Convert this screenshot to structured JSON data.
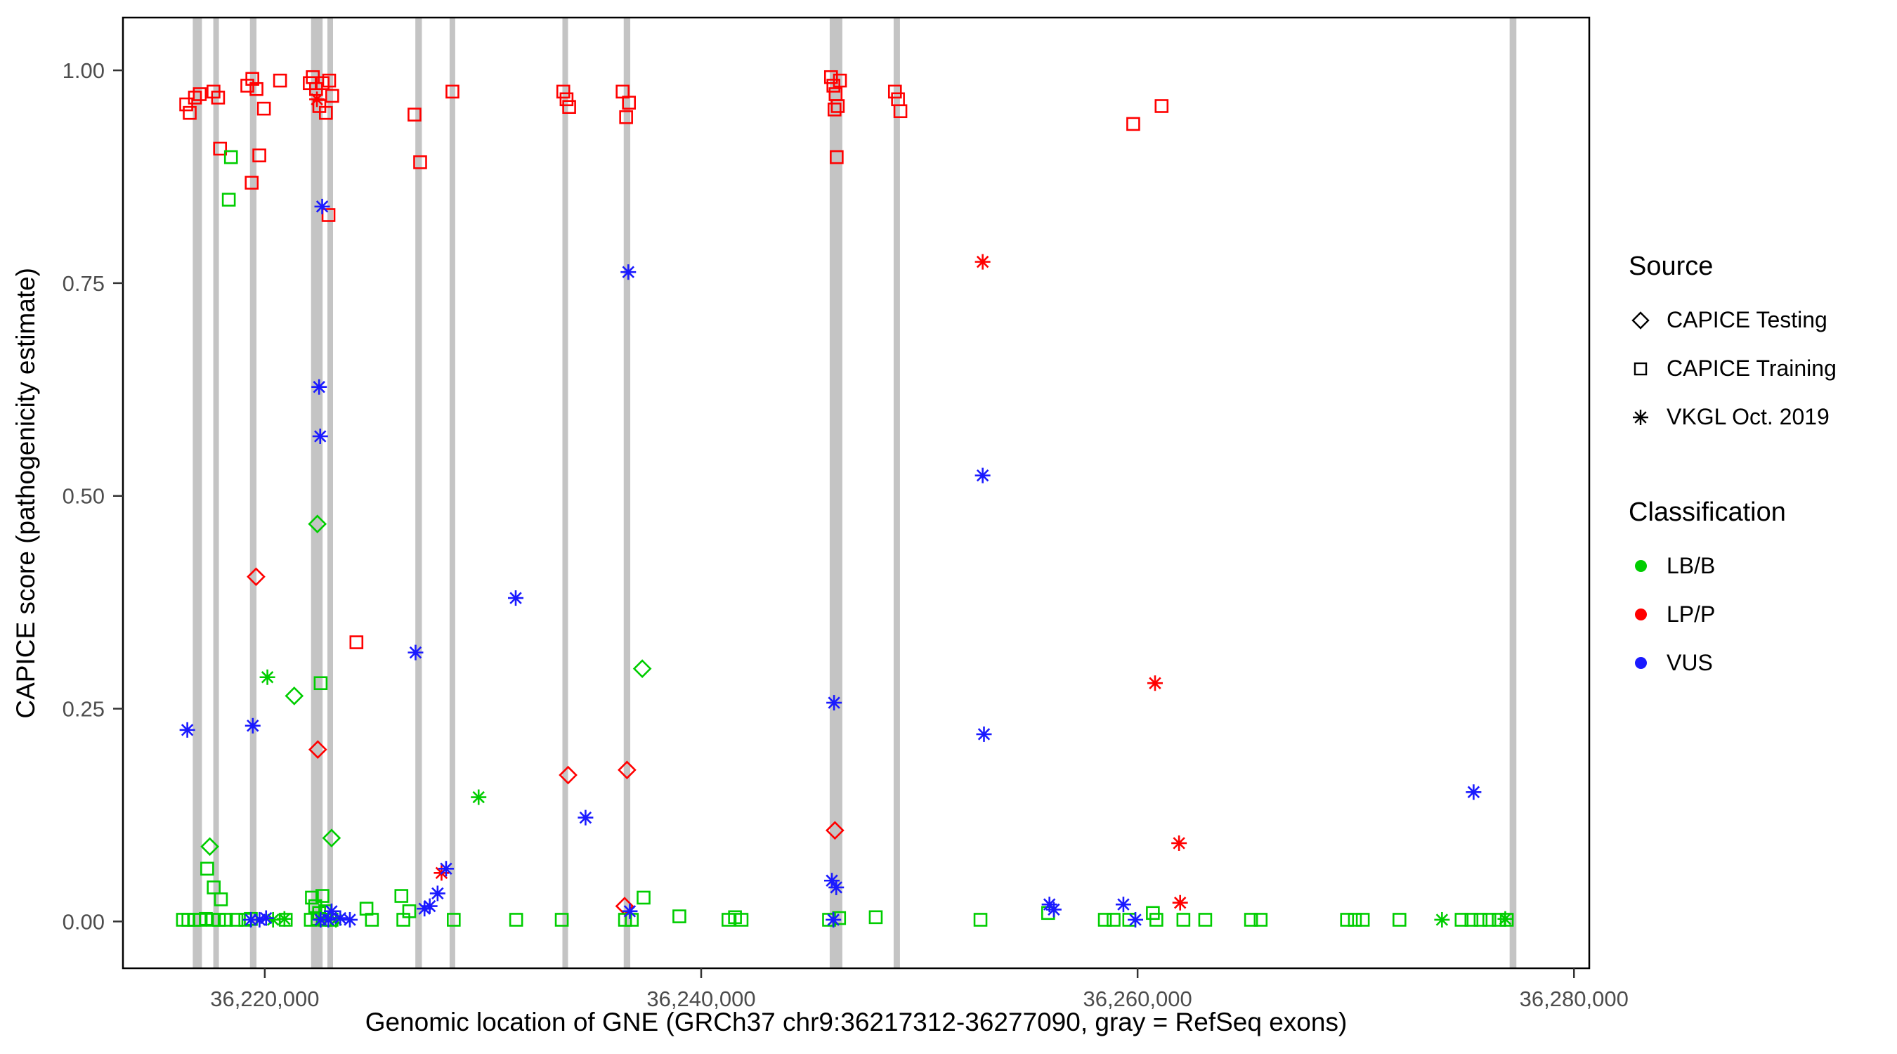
{
  "legend": {
    "source": {
      "title": "Source",
      "items": [
        {
          "label": "CAPICE Testing",
          "shape": "diamond"
        },
        {
          "label": "CAPICE Training",
          "shape": "square"
        },
        {
          "label": "VKGL Oct. 2019",
          "shape": "asterisk"
        }
      ]
    },
    "classification": {
      "title": "Classification",
      "items": [
        {
          "label": "LB/B",
          "color": "#00CD00"
        },
        {
          "label": "LP/P",
          "color": "#FF0000"
        },
        {
          "label": "VUS",
          "color": "#1A1AFF"
        }
      ]
    }
  },
  "chart_data": {
    "type": "scatter",
    "title": "",
    "xlabel": "Genomic location of GNE (GRCh37 chr9:36217312-36277090, gray = RefSeq exons)",
    "ylabel": "CAPICE score (pathogenicity estimate)",
    "xlim": [
      36213500,
      36280700
    ],
    "ylim": [
      -0.055,
      1.062
    ],
    "grid": false,
    "legend_position": "right",
    "x_ticks": [
      {
        "value": 36220000,
        "label": "36,220,000"
      },
      {
        "value": 36240000,
        "label": "36,240,000"
      },
      {
        "value": 36260000,
        "label": "36,260,000"
      },
      {
        "value": 36280000,
        "label": "36,280,000"
      }
    ],
    "y_ticks": [
      {
        "value": 0.0,
        "label": "0.00"
      },
      {
        "value": 0.25,
        "label": "0.25"
      },
      {
        "value": 0.5,
        "label": "0.50"
      },
      {
        "value": 0.75,
        "label": "0.75"
      },
      {
        "value": 1.0,
        "label": "1.00"
      }
    ],
    "exon_color": "#C4C4C4",
    "classification_colors": {
      "LB/B": "#00CD00",
      "LP/P": "#FF0000",
      "VUS": "#1A1AFF"
    },
    "shape_by_source": {
      "testing": "diamond",
      "training": "square",
      "vkgl": "asterisk"
    },
    "exons": [
      [
        36216700,
        36217120
      ],
      [
        36217640,
        36217880
      ],
      [
        36219320,
        36219620
      ],
      [
        36222120,
        36222650
      ],
      [
        36222870,
        36223110
      ],
      [
        36226900,
        36227200
      ],
      [
        36228470,
        36228720
      ],
      [
        36233640,
        36233890
      ],
      [
        36236450,
        36236750
      ],
      [
        36245890,
        36246470
      ],
      [
        36248820,
        36249110
      ],
      [
        36277050,
        36277360
      ]
    ],
    "points": [
      [
        36216400,
        0.96,
        "LP/P",
        "training"
      ],
      [
        36216560,
        0.95,
        "LP/P",
        "training"
      ],
      [
        36216800,
        0.968,
        "LP/P",
        "training"
      ],
      [
        36217020,
        0.972,
        "LP/P",
        "training"
      ],
      [
        36217650,
        0.975,
        "LP/P",
        "training"
      ],
      [
        36217860,
        0.968,
        "LP/P",
        "training"
      ],
      [
        36217950,
        0.908,
        "LP/P",
        "training"
      ],
      [
        36219750,
        0.9,
        "LP/P",
        "training"
      ],
      [
        36219400,
        0.868,
        "LP/P",
        "training"
      ],
      [
        36219200,
        0.982,
        "LP/P",
        "training"
      ],
      [
        36219430,
        0.99,
        "LP/P",
        "training"
      ],
      [
        36219620,
        0.978,
        "LP/P",
        "training"
      ],
      [
        36219960,
        0.955,
        "LP/P",
        "training"
      ],
      [
        36220700,
        0.988,
        "LP/P",
        "training"
      ],
      [
        36222060,
        0.985,
        "LP/P",
        "training"
      ],
      [
        36222200,
        0.992,
        "LP/P",
        "training"
      ],
      [
        36222350,
        0.978,
        "LP/P",
        "training"
      ],
      [
        36222500,
        0.958,
        "LP/P",
        "training"
      ],
      [
        36222650,
        0.985,
        "LP/P",
        "training"
      ],
      [
        36222800,
        0.95,
        "LP/P",
        "training"
      ],
      [
        36222950,
        0.988,
        "LP/P",
        "training"
      ],
      [
        36223090,
        0.97,
        "LP/P",
        "training"
      ],
      [
        36222920,
        0.83,
        "LP/P",
        "training"
      ],
      [
        36224200,
        0.328,
        "LP/P",
        "training"
      ],
      [
        36226860,
        0.948,
        "LP/P",
        "training"
      ],
      [
        36227120,
        0.892,
        "LP/P",
        "training"
      ],
      [
        36228600,
        0.975,
        "LP/P",
        "training"
      ],
      [
        36233680,
        0.975,
        "LP/P",
        "training"
      ],
      [
        36233830,
        0.966,
        "LP/P",
        "training"
      ],
      [
        36233950,
        0.957,
        "LP/P",
        "training"
      ],
      [
        36236400,
        0.975,
        "LP/P",
        "training"
      ],
      [
        36236560,
        0.945,
        "LP/P",
        "training"
      ],
      [
        36236690,
        0.962,
        "LP/P",
        "training"
      ],
      [
        36245950,
        0.992,
        "LP/P",
        "training"
      ],
      [
        36246060,
        0.982,
        "LP/P",
        "training"
      ],
      [
        36246160,
        0.972,
        "LP/P",
        "training"
      ],
      [
        36246260,
        0.958,
        "LP/P",
        "training"
      ],
      [
        36246360,
        0.988,
        "LP/P",
        "training"
      ],
      [
        36246110,
        0.954,
        "LP/P",
        "training"
      ],
      [
        36246210,
        0.898,
        "LP/P",
        "training"
      ],
      [
        36248880,
        0.975,
        "LP/P",
        "training"
      ],
      [
        36249020,
        0.966,
        "LP/P",
        "training"
      ],
      [
        36249130,
        0.952,
        "LP/P",
        "training"
      ],
      [
        36259800,
        0.937,
        "LP/P",
        "training"
      ],
      [
        36261100,
        0.958,
        "LP/P",
        "training"
      ],
      [
        36219600,
        0.405,
        "LP/P",
        "testing"
      ],
      [
        36222430,
        0.202,
        "LP/P",
        "testing"
      ],
      [
        36233900,
        0.172,
        "LP/P",
        "testing"
      ],
      [
        36236600,
        0.178,
        "LP/P",
        "testing"
      ],
      [
        36246130,
        0.107,
        "LP/P",
        "testing"
      ],
      [
        36236490,
        0.018,
        "LP/P",
        "testing"
      ],
      [
        36222390,
        0.966,
        "LP/P",
        "vkgl"
      ],
      [
        36228100,
        0.057,
        "LP/P",
        "vkgl"
      ],
      [
        36252900,
        0.775,
        "LP/P",
        "vkgl"
      ],
      [
        36260800,
        0.28,
        "LP/P",
        "vkgl"
      ],
      [
        36261900,
        0.092,
        "LP/P",
        "vkgl"
      ],
      [
        36261950,
        0.022,
        "LP/P",
        "vkgl"
      ],
      [
        36217480,
        0.088,
        "LB/B",
        "testing"
      ],
      [
        36221350,
        0.265,
        "LB/B",
        "testing"
      ],
      [
        36222410,
        0.467,
        "LB/B",
        "testing"
      ],
      [
        36223060,
        0.098,
        "LB/B",
        "testing"
      ],
      [
        36237300,
        0.297,
        "LB/B",
        "testing"
      ],
      [
        36220120,
        0.287,
        "LB/B",
        "vkgl"
      ],
      [
        36229800,
        0.146,
        "LB/B",
        "vkgl"
      ],
      [
        36220380,
        0.002,
        "LB/B",
        "vkgl"
      ],
      [
        36220900,
        0.003,
        "LB/B",
        "vkgl"
      ],
      [
        36223260,
        0.002,
        "LB/B",
        "vkgl"
      ],
      [
        36273950,
        0.002,
        "LB/B",
        "vkgl"
      ],
      [
        36276850,
        0.003,
        "LB/B",
        "vkgl"
      ],
      [
        36218450,
        0.898,
        "LB/B",
        "training"
      ],
      [
        36218350,
        0.848,
        "LB/B",
        "training"
      ],
      [
        36217360,
        0.062,
        "LB/B",
        "training"
      ],
      [
        36217660,
        0.04,
        "LB/B",
        "training"
      ],
      [
        36217990,
        0.026,
        "LB/B",
        "training"
      ],
      [
        36222160,
        0.028,
        "LB/B",
        "training"
      ],
      [
        36222310,
        0.018,
        "LB/B",
        "training"
      ],
      [
        36222490,
        0.01,
        "LB/B",
        "training"
      ],
      [
        36222640,
        0.03,
        "LB/B",
        "training"
      ],
      [
        36222770,
        0.012,
        "LB/B",
        "training"
      ],
      [
        36222560,
        0.28,
        "LB/B",
        "training"
      ],
      [
        36224660,
        0.015,
        "LB/B",
        "training"
      ],
      [
        36226260,
        0.03,
        "LB/B",
        "training"
      ],
      [
        36226620,
        0.012,
        "LB/B",
        "training"
      ],
      [
        36237360,
        0.028,
        "LB/B",
        "training"
      ],
      [
        36239000,
        0.006,
        "LB/B",
        "training"
      ],
      [
        36255900,
        0.01,
        "LB/B",
        "training"
      ],
      [
        36216250,
        0.002,
        "LB/B",
        "training"
      ],
      [
        36216500,
        0.002,
        "LB/B",
        "training"
      ],
      [
        36216760,
        0.002,
        "LB/B",
        "training"
      ],
      [
        36217010,
        0.002,
        "LB/B",
        "training"
      ],
      [
        36217300,
        0.003,
        "LB/B",
        "training"
      ],
      [
        36217610,
        0.002,
        "LB/B",
        "training"
      ],
      [
        36217900,
        0.002,
        "LB/B",
        "training"
      ],
      [
        36218220,
        0.002,
        "LB/B",
        "training"
      ],
      [
        36218700,
        0.002,
        "LB/B",
        "training"
      ],
      [
        36219110,
        0.002,
        "LB/B",
        "training"
      ],
      [
        36219360,
        0.003,
        "LB/B",
        "training"
      ],
      [
        36220960,
        0.002,
        "LB/B",
        "training"
      ],
      [
        36222110,
        0.002,
        "LB/B",
        "training"
      ],
      [
        36222420,
        0.003,
        "LB/B",
        "training"
      ],
      [
        36222760,
        0.002,
        "LB/B",
        "training"
      ],
      [
        36223060,
        0.002,
        "LB/B",
        "training"
      ],
      [
        36224910,
        0.002,
        "LB/B",
        "training"
      ],
      [
        36226350,
        0.002,
        "LB/B",
        "training"
      ],
      [
        36228660,
        0.002,
        "LB/B",
        "training"
      ],
      [
        36231520,
        0.002,
        "LB/B",
        "training"
      ],
      [
        36233610,
        0.002,
        "LB/B",
        "training"
      ],
      [
        36236510,
        0.002,
        "LB/B",
        "training"
      ],
      [
        36236820,
        0.002,
        "LB/B",
        "training"
      ],
      [
        36241250,
        0.002,
        "LB/B",
        "training"
      ],
      [
        36241550,
        0.005,
        "LB/B",
        "training"
      ],
      [
        36241850,
        0.002,
        "LB/B",
        "training"
      ],
      [
        36245860,
        0.002,
        "LB/B",
        "training"
      ],
      [
        36246320,
        0.004,
        "LB/B",
        "training"
      ],
      [
        36248000,
        0.005,
        "LB/B",
        "training"
      ],
      [
        36252800,
        0.002,
        "LB/B",
        "training"
      ],
      [
        36258500,
        0.002,
        "LB/B",
        "training"
      ],
      [
        36258900,
        0.002,
        "LB/B",
        "training"
      ],
      [
        36259620,
        0.002,
        "LB/B",
        "training"
      ],
      [
        36260700,
        0.01,
        "LB/B",
        "training"
      ],
      [
        36260860,
        0.002,
        "LB/B",
        "training"
      ],
      [
        36262100,
        0.002,
        "LB/B",
        "training"
      ],
      [
        36263100,
        0.002,
        "LB/B",
        "training"
      ],
      [
        36265200,
        0.002,
        "LB/B",
        "training"
      ],
      [
        36265640,
        0.002,
        "LB/B",
        "training"
      ],
      [
        36269600,
        0.002,
        "LB/B",
        "training"
      ],
      [
        36269960,
        0.002,
        "LB/B",
        "training"
      ],
      [
        36270320,
        0.002,
        "LB/B",
        "training"
      ],
      [
        36272000,
        0.002,
        "LB/B",
        "training"
      ],
      [
        36274850,
        0.002,
        "LB/B",
        "training"
      ],
      [
        36275300,
        0.002,
        "LB/B",
        "training"
      ],
      [
        36275720,
        0.002,
        "LB/B",
        "training"
      ],
      [
        36276120,
        0.002,
        "LB/B",
        "training"
      ],
      [
        36276550,
        0.002,
        "LB/B",
        "training"
      ],
      [
        36276920,
        0.002,
        "LB/B",
        "training"
      ],
      [
        36216450,
        0.225,
        "VUS",
        "vkgl"
      ],
      [
        36219450,
        0.23,
        "VUS",
        "vkgl"
      ],
      [
        36222630,
        0.84,
        "VUS",
        "vkgl"
      ],
      [
        36222490,
        0.628,
        "VUS",
        "vkgl"
      ],
      [
        36222540,
        0.57,
        "VUS",
        "vkgl"
      ],
      [
        36226910,
        0.316,
        "VUS",
        "vkgl"
      ],
      [
        36228310,
        0.062,
        "VUS",
        "vkgl"
      ],
      [
        36227560,
        0.018,
        "VUS",
        "vkgl"
      ],
      [
        36227920,
        0.033,
        "VUS",
        "vkgl"
      ],
      [
        36227320,
        0.015,
        "VUS",
        "vkgl"
      ],
      [
        36231500,
        0.38,
        "VUS",
        "vkgl"
      ],
      [
        36234700,
        0.122,
        "VUS",
        "vkgl"
      ],
      [
        36236660,
        0.763,
        "VUS",
        "vkgl"
      ],
      [
        36236730,
        0.012,
        "VUS",
        "vkgl"
      ],
      [
        36246090,
        0.257,
        "VUS",
        "vkgl"
      ],
      [
        36245990,
        0.048,
        "VUS",
        "vkgl"
      ],
      [
        36246190,
        0.04,
        "VUS",
        "vkgl"
      ],
      [
        36246060,
        0.002,
        "VUS",
        "vkgl"
      ],
      [
        36252900,
        0.524,
        "VUS",
        "vkgl"
      ],
      [
        36252960,
        0.22,
        "VUS",
        "vkgl"
      ],
      [
        36255960,
        0.02,
        "VUS",
        "vkgl"
      ],
      [
        36256160,
        0.014,
        "VUS",
        "vkgl"
      ],
      [
        36259350,
        0.02,
        "VUS",
        "vkgl"
      ],
      [
        36259900,
        0.002,
        "VUS",
        "vkgl"
      ],
      [
        36275400,
        0.152,
        "VUS",
        "vkgl"
      ],
      [
        36219360,
        0.002,
        "VUS",
        "vkgl"
      ],
      [
        36219760,
        0.002,
        "VUS",
        "vkgl"
      ],
      [
        36220060,
        0.004,
        "VUS",
        "vkgl"
      ],
      [
        36222560,
        0.002,
        "VUS",
        "vkgl"
      ],
      [
        36222910,
        0.002,
        "VUS",
        "vkgl"
      ],
      [
        36223060,
        0.012,
        "VUS",
        "vkgl"
      ],
      [
        36223460,
        0.004,
        "VUS",
        "vkgl"
      ],
      [
        36223900,
        0.002,
        "VUS",
        "vkgl"
      ]
    ]
  }
}
